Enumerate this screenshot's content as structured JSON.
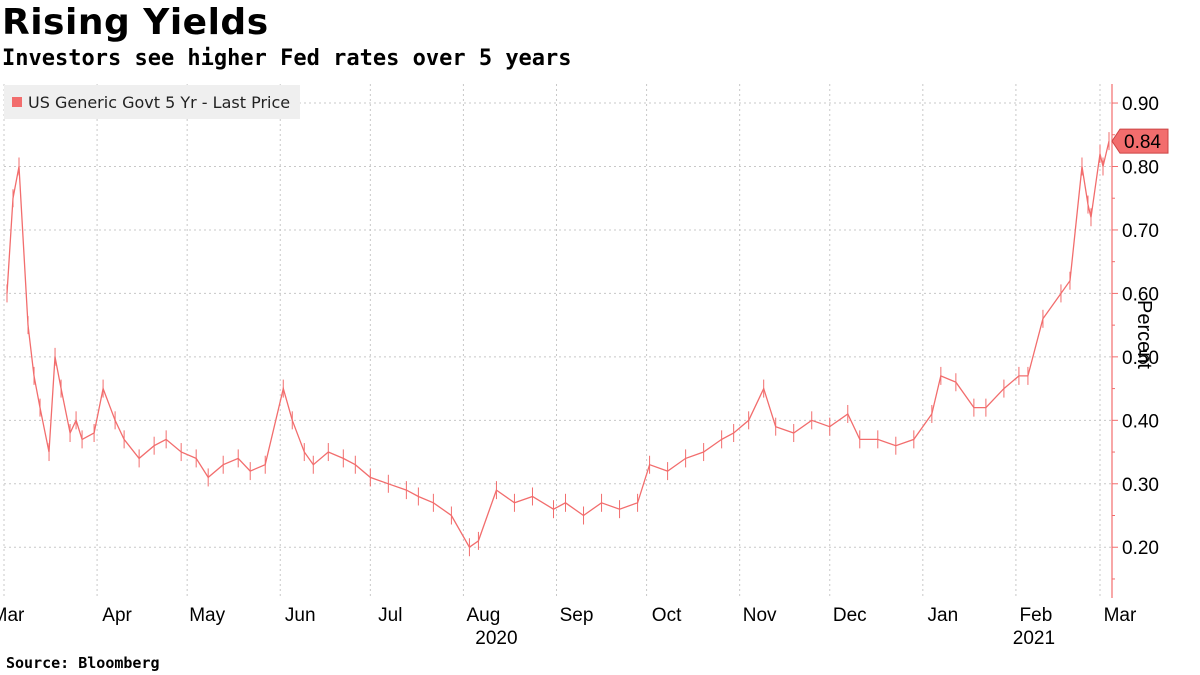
{
  "header": {
    "title": "Rising Yields",
    "subtitle": "Investors see higher Fed rates over 5 years"
  },
  "footer": {
    "source": "Source: Bloomberg"
  },
  "colors": {
    "series": "#f26d6d",
    "grid": "#c8c8c8",
    "axis": "#f26d6d",
    "legend_bg": "#efefef"
  },
  "chart_data": {
    "type": "line",
    "title": "Rising Yields",
    "subtitle": "Investors see higher Fed rates over 5 years",
    "ylabel": "Percent",
    "xlabel": "",
    "ylim": [
      0.12,
      0.93
    ],
    "y_ticks": [
      0.2,
      0.3,
      0.4,
      0.5,
      0.6,
      0.7,
      0.8,
      0.9
    ],
    "y_tick_labels": [
      "0.20",
      "0.30",
      "0.40",
      "0.50",
      "0.60",
      "0.70",
      "0.80",
      "0.90"
    ],
    "x_range": [
      "2020-03-01",
      "2021-03-05"
    ],
    "x_ticks": [
      {
        "date": "2020-03-01",
        "label": "Mar"
      },
      {
        "date": "2020-04-01",
        "label": "Apr"
      },
      {
        "date": "2020-05-01",
        "label": "May"
      },
      {
        "date": "2020-06-01",
        "label": "Jun"
      },
      {
        "date": "2020-07-01",
        "label": "Jul"
      },
      {
        "date": "2020-08-01",
        "label": "Aug"
      },
      {
        "date": "2020-09-01",
        "label": "Sep"
      },
      {
        "date": "2020-10-01",
        "label": "Oct"
      },
      {
        "date": "2020-11-01",
        "label": "Nov"
      },
      {
        "date": "2020-12-01",
        "label": "Dec"
      },
      {
        "date": "2021-01-01",
        "label": "Jan"
      },
      {
        "date": "2021-02-01",
        "label": "Feb"
      },
      {
        "date": "2021-03-01",
        "label": "Mar"
      }
    ],
    "year_labels": [
      {
        "date": "2020-08-12",
        "label": "2020"
      },
      {
        "date": "2021-02-07",
        "label": "2021"
      }
    ],
    "legend": {
      "placement": "top-left",
      "entries": [
        "US Generic Govt 5 Yr - Last Price"
      ]
    },
    "grid": true,
    "last_value_label": "0.84",
    "series": [
      {
        "name": "US Generic Govt 5 Yr - Last Price",
        "x": [
          "2020-03-02",
          "2020-03-04",
          "2020-03-06",
          "2020-03-09",
          "2020-03-11",
          "2020-03-13",
          "2020-03-16",
          "2020-03-18",
          "2020-03-20",
          "2020-03-23",
          "2020-03-25",
          "2020-03-27",
          "2020-03-31",
          "2020-04-03",
          "2020-04-07",
          "2020-04-10",
          "2020-04-15",
          "2020-04-20",
          "2020-04-24",
          "2020-04-29",
          "2020-05-04",
          "2020-05-08",
          "2020-05-13",
          "2020-05-18",
          "2020-05-22",
          "2020-05-27",
          "2020-06-02",
          "2020-06-05",
          "2020-06-09",
          "2020-06-12",
          "2020-06-17",
          "2020-06-22",
          "2020-06-26",
          "2020-07-01",
          "2020-07-07",
          "2020-07-13",
          "2020-07-17",
          "2020-07-22",
          "2020-07-28",
          "2020-08-03",
          "2020-08-06",
          "2020-08-12",
          "2020-08-18",
          "2020-08-24",
          "2020-08-31",
          "2020-09-04",
          "2020-09-10",
          "2020-09-16",
          "2020-09-22",
          "2020-09-28",
          "2020-10-02",
          "2020-10-08",
          "2020-10-14",
          "2020-10-20",
          "2020-10-26",
          "2020-10-30",
          "2020-11-04",
          "2020-11-09",
          "2020-11-13",
          "2020-11-19",
          "2020-11-25",
          "2020-12-01",
          "2020-12-07",
          "2020-12-11",
          "2020-12-17",
          "2020-12-23",
          "2020-12-29",
          "2021-01-04",
          "2021-01-07",
          "2021-01-12",
          "2021-01-18",
          "2021-01-22",
          "2021-01-28",
          "2021-02-02",
          "2021-02-05",
          "2021-02-10",
          "2021-02-16",
          "2021-02-19",
          "2021-02-23",
          "2021-02-25",
          "2021-02-26",
          "2021-03-01",
          "2021-03-02",
          "2021-03-04"
        ],
        "y": [
          0.6,
          0.75,
          0.8,
          0.55,
          0.47,
          0.42,
          0.35,
          0.5,
          0.45,
          0.38,
          0.4,
          0.37,
          0.38,
          0.45,
          0.4,
          0.37,
          0.34,
          0.36,
          0.37,
          0.35,
          0.34,
          0.31,
          0.33,
          0.34,
          0.32,
          0.33,
          0.45,
          0.4,
          0.35,
          0.33,
          0.35,
          0.34,
          0.33,
          0.31,
          0.3,
          0.29,
          0.28,
          0.27,
          0.25,
          0.2,
          0.21,
          0.29,
          0.27,
          0.28,
          0.26,
          0.27,
          0.25,
          0.27,
          0.26,
          0.27,
          0.33,
          0.32,
          0.34,
          0.35,
          0.37,
          0.38,
          0.4,
          0.45,
          0.39,
          0.38,
          0.4,
          0.39,
          0.41,
          0.37,
          0.37,
          0.36,
          0.37,
          0.41,
          0.47,
          0.46,
          0.42,
          0.42,
          0.45,
          0.47,
          0.47,
          0.56,
          0.6,
          0.62,
          0.8,
          0.74,
          0.72,
          0.82,
          0.8,
          0.84
        ]
      }
    ]
  }
}
